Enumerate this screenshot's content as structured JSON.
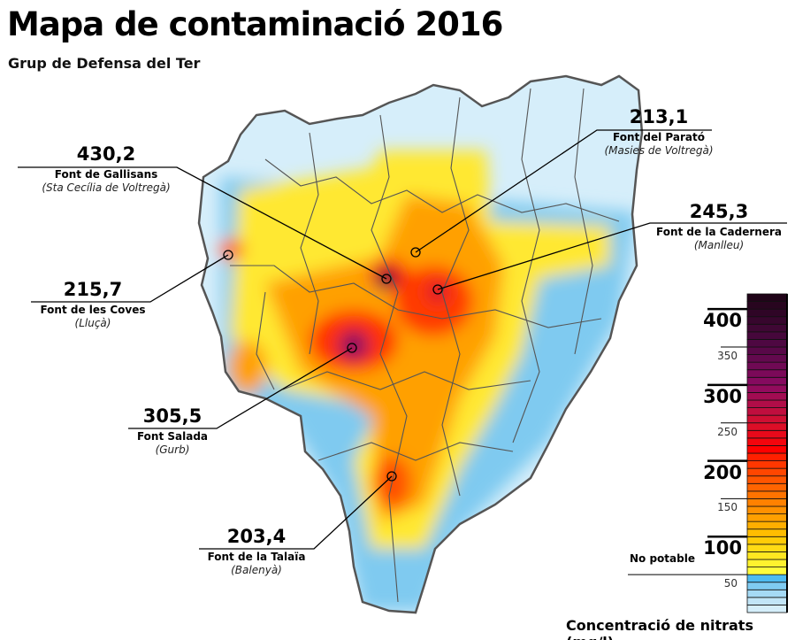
{
  "header": {
    "title": "Mapa de contaminació 2016",
    "subtitle": "Grup de Defensa del Ter"
  },
  "sources": [
    {
      "value": "430,2",
      "name": "Font de Gallisans",
      "town": "(Sta Cecília de Voltregà)",
      "level": 430.2
    },
    {
      "value": "213,1",
      "name": "Font del Parató",
      "town": "(Masies de Voltregà)",
      "level": 213.1
    },
    {
      "value": "245,3",
      "name": "Font de la Cadernera",
      "town": "(Manlleu)",
      "level": 245.3
    },
    {
      "value": "215,7",
      "name": "Font de les Coves",
      "town": "(Lluçà)",
      "level": 215.7
    },
    {
      "value": "305,5",
      "name": "Font Salada",
      "town": "(Gurb)",
      "level": 305.5
    },
    {
      "value": "203,4",
      "name": "Font de la Talaïa",
      "town": "(Balenyà)",
      "level": 203.4
    }
  ],
  "legend": {
    "title": "Concentració de nitrats (mg/l)",
    "no_potable_label": "No potable",
    "no_potable_threshold": 50,
    "range": [
      0,
      420
    ],
    "ticks": [
      {
        "value": 400,
        "label": "400",
        "major": true
      },
      {
        "value": 350,
        "label": "350",
        "major": false
      },
      {
        "value": 300,
        "label": "300",
        "major": true
      },
      {
        "value": 250,
        "label": "250",
        "major": false
      },
      {
        "value": 200,
        "label": "200",
        "major": true
      },
      {
        "value": 150,
        "label": "150",
        "major": false
      },
      {
        "value": 100,
        "label": "100",
        "major": true
      },
      {
        "value": 50,
        "label": "50",
        "major": false
      }
    ],
    "color_stops": [
      [
        0,
        "#dff2fb"
      ],
      [
        20,
        "#b8e1f6"
      ],
      [
        40,
        "#6cc3f0"
      ],
      [
        50,
        "#2fb3f2"
      ],
      [
        52,
        "#ffff40"
      ],
      [
        80,
        "#ffe21a"
      ],
      [
        100,
        "#ffc400"
      ],
      [
        150,
        "#ff7a00"
      ],
      [
        200,
        "#ff3000"
      ],
      [
        215,
        "#ff0000"
      ],
      [
        250,
        "#d6102e"
      ],
      [
        300,
        "#8c0a62"
      ],
      [
        350,
        "#520845"
      ],
      [
        420,
        "#1c0414"
      ]
    ]
  }
}
